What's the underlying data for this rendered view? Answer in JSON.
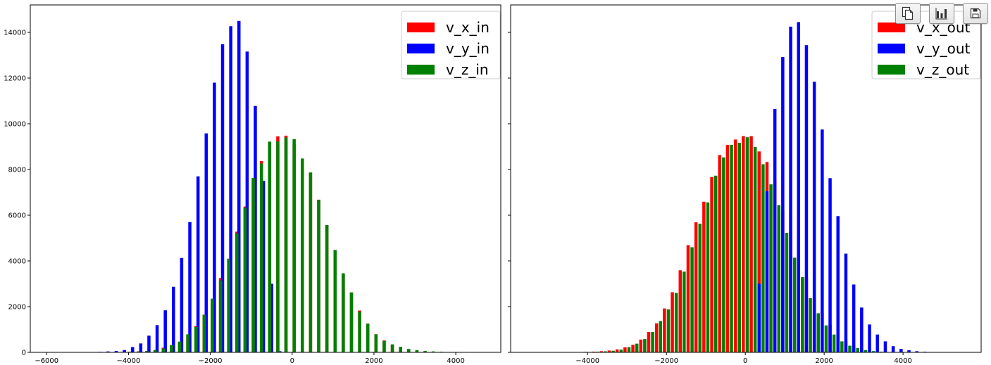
{
  "toolbar": {
    "buttons": [
      {
        "name": "copy-button",
        "icon": "copy-icon"
      },
      {
        "name": "chart-button",
        "icon": "bar-chart-icon"
      },
      {
        "name": "save-button",
        "icon": "floppy-disk-icon"
      }
    ]
  },
  "chart_data": [
    {
      "type": "bar",
      "title": "",
      "xlabel": "",
      "ylabel": "",
      "xlim": [
        -6400,
        5100
      ],
      "ylim": [
        0,
        15200
      ],
      "xticks": [
        -6000,
        -4000,
        -2000,
        0,
        2000,
        4000
      ],
      "yticks": [
        0,
        2000,
        4000,
        6000,
        8000,
        10000,
        12000,
        14000
      ],
      "tick_labels_y": [
        "0",
        "2000",
        "4000",
        "6000",
        "8000",
        "10000",
        "12000",
        "14000"
      ],
      "tick_labels_x": [
        "−6000",
        "−4000",
        "−2000",
        "0",
        "2000",
        "4000"
      ],
      "grid": false,
      "legend_position": "top-right",
      "bin_width_centers": 200,
      "series": [
        {
          "name": "v_x_in",
          "color": "#ff0000",
          "x": [
            -4750,
            -4550,
            -4350,
            -4150,
            -3950,
            -3750,
            -3550,
            -3350,
            -3150,
            -2950,
            -2750,
            -2550,
            -2350,
            -2150,
            -1950,
            -1750,
            -1550,
            -1350,
            -1150,
            -950,
            -750,
            -550,
            -350,
            -150,
            50,
            250,
            450,
            650,
            850,
            1050,
            1250,
            1450,
            1650,
            1850,
            2050,
            2250,
            2450,
            2650,
            2850,
            3050,
            3250,
            3450,
            3650,
            3850,
            4050,
            4250
          ],
          "values": [
            5,
            8,
            12,
            20,
            30,
            45,
            60,
            100,
            200,
            300,
            450,
            730,
            1150,
            1650,
            2280,
            3250,
            4000,
            5280,
            6380,
            7500,
            8370,
            9200,
            9450,
            9480,
            9100,
            8400,
            7850,
            6680,
            5570,
            4420,
            3390,
            2620,
            1830,
            1260,
            790,
            520,
            330,
            220,
            110,
            70,
            40,
            25,
            15,
            10,
            5,
            3
          ]
        },
        {
          "name": "v_y_in",
          "color": "#0000ff",
          "x": [
            -4900,
            -4700,
            -4500,
            -4300,
            -4100,
            -3900,
            -3700,
            -3500,
            -3300,
            -3100,
            -2900,
            -2700,
            -2500,
            -2300,
            -2100,
            -1900,
            -1700,
            -1500,
            -1300,
            -1100,
            -900,
            -700,
            -500,
            -300,
            -100
          ],
          "values": [
            10,
            20,
            40,
            60,
            100,
            230,
            390,
            730,
            1190,
            1840,
            2870,
            4130,
            5700,
            7700,
            9580,
            11800,
            13480,
            14270,
            14500,
            13160,
            10780,
            7500,
            3000,
            50,
            10
          ]
        },
        {
          "name": "v_z_in",
          "color": "#008000",
          "x": [
            -4550,
            -4350,
            -4150,
            -3950,
            -3750,
            -3550,
            -3350,
            -3150,
            -2950,
            -2750,
            -2550,
            -2350,
            -2150,
            -1950,
            -1750,
            -1550,
            -1350,
            -1150,
            -950,
            -750,
            -550,
            -350,
            -150,
            50,
            250,
            450,
            650,
            850,
            1050,
            1250,
            1450,
            1650,
            1850,
            2050,
            2250,
            2450,
            2650,
            2850,
            3050,
            3250,
            3450,
            3650,
            3850,
            4050,
            4250,
            4450
          ],
          "values": [
            6,
            10,
            15,
            25,
            40,
            55,
            100,
            170,
            320,
            470,
            790,
            1110,
            1640,
            2350,
            3150,
            4100,
            5200,
            6330,
            7630,
            8260,
            9220,
            9230,
            9400,
            9330,
            8480,
            7870,
            6660,
            5570,
            4480,
            3460,
            2620,
            1780,
            1250,
            790,
            500,
            350,
            240,
            150,
            100,
            60,
            40,
            25,
            15,
            10,
            5,
            3
          ]
        }
      ]
    },
    {
      "type": "bar",
      "title": "",
      "xlabel": "",
      "ylabel": "",
      "xlim": [
        -5950,
        5980
      ],
      "ylim": [
        0,
        15200
      ],
      "xticks": [
        -4000,
        -2000,
        0,
        2000,
        4000
      ],
      "yticks": [
        0,
        2000,
        4000,
        6000,
        8000,
        10000,
        12000,
        14000
      ],
      "tick_labels_x": [
        "−4000",
        "−2000",
        "0",
        "2000",
        "4000"
      ],
      "grid": false,
      "legend_position": "top-right",
      "series": [
        {
          "name": "v_x_out",
          "color": "#ff0000",
          "x": [
            -4250,
            -4050,
            -3850,
            -3650,
            -3450,
            -3250,
            -3050,
            -2850,
            -2650,
            -2450,
            -2250,
            -2050,
            -1850,
            -1650,
            -1450,
            -1250,
            -1050,
            -850,
            -650,
            -450,
            -250,
            -50,
            150,
            350,
            550,
            750,
            950,
            1150,
            1350,
            1550,
            1750,
            1950,
            2150,
            2350,
            2550,
            2750,
            2950,
            3150,
            3350,
            3550,
            3750
          ],
          "values": [
            10,
            20,
            30,
            50,
            80,
            130,
            220,
            330,
            560,
            890,
            1270,
            1920,
            2630,
            3590,
            4690,
            5690,
            6590,
            7670,
            8630,
            9080,
            9310,
            9460,
            9460,
            8790,
            8330,
            7510,
            6250,
            5260,
            4140,
            3270,
            2420,
            1720,
            1210,
            800,
            490,
            290,
            180,
            100,
            60,
            30,
            15
          ]
        },
        {
          "name": "v_y_out",
          "color": "#0000ff",
          "x": [
            150,
            350,
            550,
            750,
            950,
            1150,
            1350,
            1550,
            1750,
            1950,
            2150,
            2350,
            2550,
            2750,
            2950,
            3150,
            3350,
            3550,
            3750,
            3950,
            4150,
            4350,
            4550,
            4750,
            4950
          ],
          "values": [
            10,
            3000,
            7050,
            10650,
            12920,
            14250,
            14450,
            13440,
            11840,
            9750,
            7620,
            5960,
            4320,
            2970,
            1960,
            1220,
            780,
            480,
            270,
            150,
            90,
            50,
            25,
            15,
            10
          ]
        },
        {
          "name": "v_z_out",
          "color": "#008000",
          "x": [
            -3950,
            -3750,
            -3550,
            -3350,
            -3150,
            -2950,
            -2750,
            -2550,
            -2350,
            -2150,
            -1950,
            -1750,
            -1550,
            -1350,
            -1150,
            -950,
            -750,
            -550,
            -350,
            -150,
            50,
            250,
            450,
            650,
            850,
            1050,
            1250,
            1450,
            1650,
            1850,
            2050,
            2250,
            2450,
            2650,
            2850,
            3050,
            3250,
            3450,
            3650,
            3850,
            4050
          ],
          "values": [
            15,
            25,
            45,
            70,
            120,
            230,
            380,
            580,
            890,
            1370,
            1880,
            2600,
            3530,
            4600,
            5630,
            6560,
            7730,
            8530,
            9080,
            9170,
            9410,
            8990,
            8230,
            7350,
            6440,
            5230,
            4140,
            3290,
            2370,
            1710,
            1180,
            780,
            480,
            290,
            190,
            100,
            55,
            30,
            15,
            10,
            5
          ]
        }
      ]
    }
  ]
}
